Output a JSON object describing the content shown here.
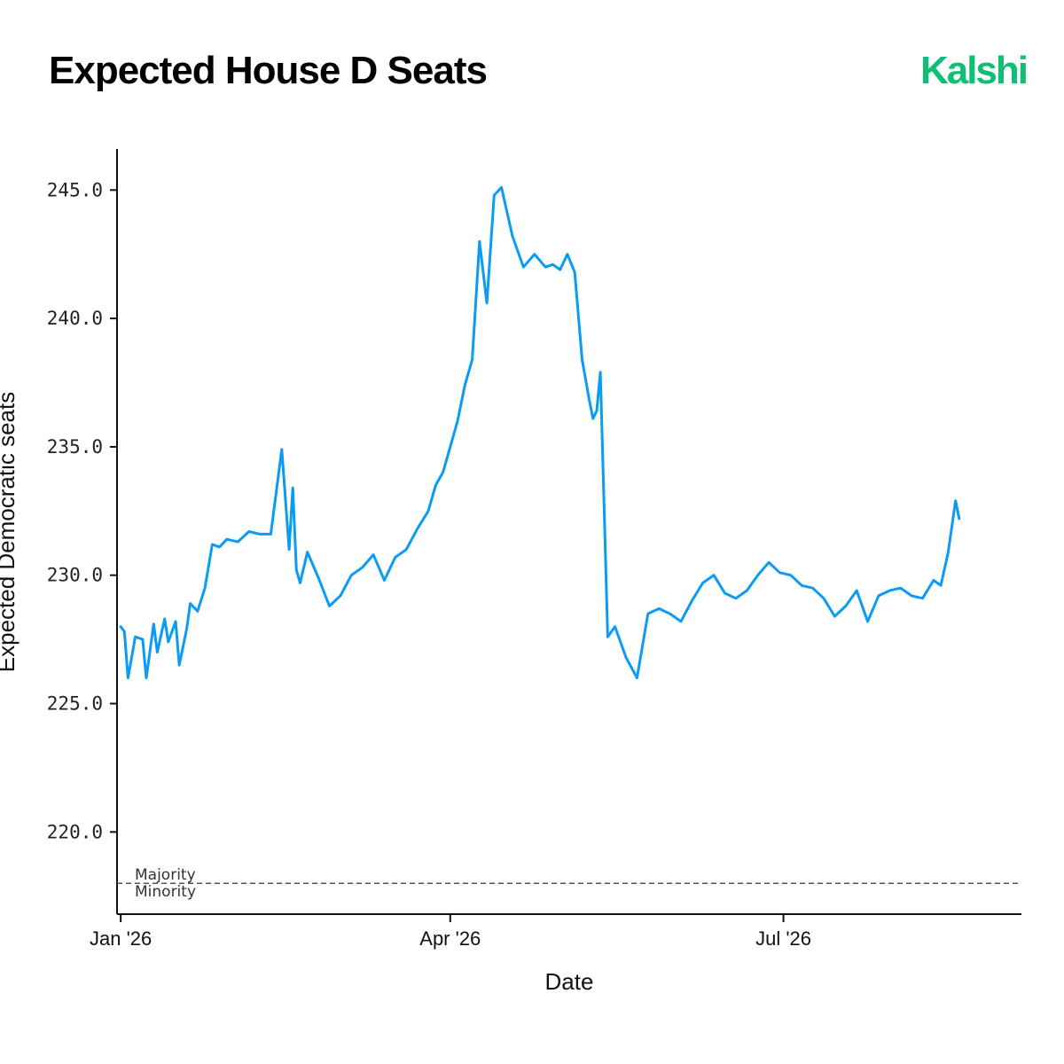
{
  "header": {
    "title": "Expected House D Seats",
    "logo_text": "Kalshi"
  },
  "colors": {
    "brand": "#0fbf76",
    "line": "#0a9cf5",
    "axis": "#111111",
    "reference": "#555555"
  },
  "chart_data": {
    "type": "line",
    "title": "Expected House D Seats",
    "xlabel": "Date",
    "ylabel": "Expected Democratic seats",
    "ylim": [
      216.8,
      246.6
    ],
    "xlim": [
      "2025-12-31",
      "2026-09-04"
    ],
    "grid": false,
    "y_ticks": [
      "220.0",
      "225.0",
      "230.0",
      "235.0",
      "240.0",
      "245.0"
    ],
    "x_ticks": [
      {
        "date": "2026-01-01",
        "label": "Jan '26"
      },
      {
        "date": "2026-04-01",
        "label": "Apr '26"
      },
      {
        "date": "2026-07-01",
        "label": "Jul '26"
      }
    ],
    "reference_line": {
      "y": 218,
      "label_above": "Majority",
      "label_below": "Minority"
    },
    "series": [
      {
        "x": [
          "2026-01-01",
          "2026-01-02",
          "2026-01-03",
          "2026-01-05",
          "2026-01-07",
          "2026-01-08",
          "2026-01-10",
          "2026-01-11",
          "2026-01-13",
          "2026-01-14",
          "2026-01-16",
          "2026-01-17",
          "2026-01-19",
          "2026-01-20",
          "2026-01-22",
          "2026-01-24",
          "2026-01-26",
          "2026-01-28",
          "2026-01-30",
          "2026-02-02",
          "2026-02-05",
          "2026-02-08",
          "2026-02-11",
          "2026-02-14",
          "2026-02-16",
          "2026-02-17",
          "2026-02-18",
          "2026-02-19",
          "2026-02-21",
          "2026-02-24",
          "2026-02-27",
          "2026-03-02",
          "2026-03-05",
          "2026-03-08",
          "2026-03-11",
          "2026-03-14",
          "2026-03-17",
          "2026-03-20",
          "2026-03-23",
          "2026-03-26",
          "2026-03-28",
          "2026-03-30",
          "2026-03-31",
          "2026-04-01",
          "2026-04-03",
          "2026-04-05",
          "2026-04-07",
          "2026-04-09",
          "2026-04-11",
          "2026-04-13",
          "2026-04-15",
          "2026-04-18",
          "2026-04-21",
          "2026-04-24",
          "2026-04-27",
          "2026-04-29",
          "2026-05-01",
          "2026-05-03",
          "2026-05-05",
          "2026-05-07",
          "2026-05-09",
          "2026-05-10",
          "2026-05-11",
          "2026-05-12",
          "2026-05-14",
          "2026-05-16",
          "2026-05-19",
          "2026-05-22",
          "2026-05-25",
          "2026-05-28",
          "2026-05-31",
          "2026-06-03",
          "2026-06-06",
          "2026-06-09",
          "2026-06-12",
          "2026-06-15",
          "2026-06-18",
          "2026-06-21",
          "2026-06-24",
          "2026-06-27",
          "2026-06-30",
          "2026-07-03",
          "2026-07-06",
          "2026-07-09",
          "2026-07-12",
          "2026-07-15",
          "2026-07-18",
          "2026-07-21",
          "2026-07-24",
          "2026-07-27",
          "2026-07-30",
          "2026-08-02",
          "2026-08-05",
          "2026-08-08",
          "2026-08-11",
          "2026-08-13",
          "2026-08-15",
          "2026-08-17",
          "2026-08-18"
        ],
        "y": [
          228.0,
          227.8,
          226.0,
          227.6,
          227.5,
          226.0,
          228.1,
          227.0,
          228.3,
          227.4,
          228.2,
          226.5,
          227.9,
          228.9,
          228.6,
          229.5,
          231.2,
          231.1,
          231.4,
          231.3,
          231.7,
          231.6,
          231.6,
          234.9,
          231.0,
          233.4,
          230.2,
          229.7,
          230.9,
          229.9,
          228.8,
          229.2,
          230.0,
          230.3,
          230.8,
          229.8,
          230.7,
          231.0,
          231.8,
          232.5,
          233.5,
          234.0,
          234.5,
          235.0,
          236.0,
          237.4,
          238.4,
          243.0,
          240.6,
          244.8,
          245.1,
          243.2,
          242.0,
          242.5,
          242.0,
          242.1,
          241.9,
          242.5,
          241.8,
          238.4,
          236.8,
          236.1,
          236.4,
          237.9,
          227.6,
          228.0,
          226.8,
          226.0,
          228.5,
          228.7,
          228.5,
          228.2,
          229.0,
          229.7,
          230.0,
          229.3,
          229.1,
          229.4,
          230.0,
          230.5,
          230.1,
          230.0,
          229.6,
          229.5,
          229.1,
          228.4,
          228.8,
          229.4,
          228.2,
          229.2,
          229.4,
          229.5,
          229.2,
          229.1,
          229.8,
          229.6,
          230.9,
          232.9,
          232.2
        ]
      }
    ]
  }
}
